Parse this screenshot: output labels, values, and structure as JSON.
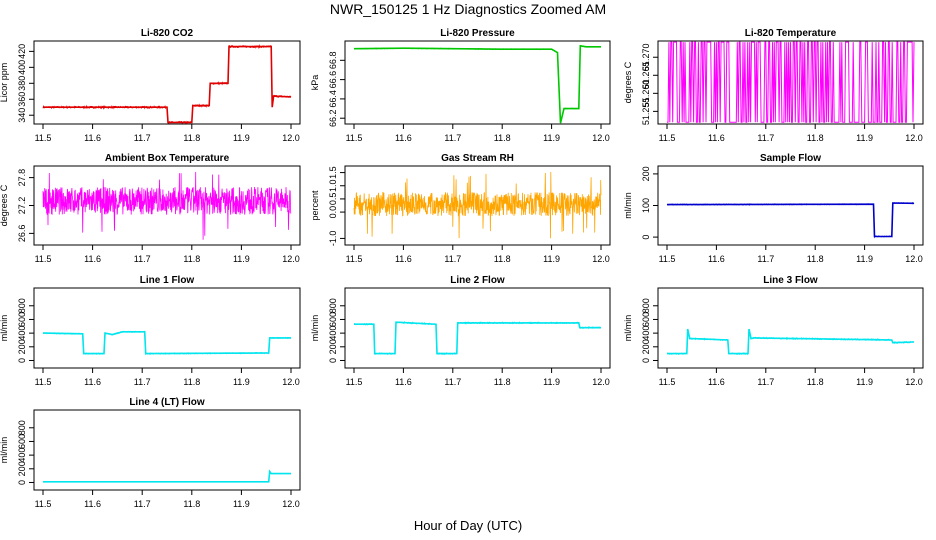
{
  "figure": {
    "title": "NWR_150125  1 Hz Diagnostics Zoomed AM",
    "xlabel": "Hour of Day (UTC)"
  },
  "chart_data": [
    {
      "id": "li820-co2",
      "type": "line",
      "title": "Li-820 CO2",
      "ylabel": "Licor ppm",
      "color": "#e00000",
      "x_ticks": [
        11.5,
        11.6,
        11.7,
        11.8,
        11.9,
        12.0
      ],
      "xlim": [
        11.5,
        12.0
      ],
      "y_ticks": [
        "340",
        "360",
        "380",
        "400",
        "420"
      ],
      "y_tick_values": [
        340,
        360,
        380,
        400,
        420
      ],
      "ylim": [
        329,
        433
      ],
      "series": [
        {
          "name": "CO2",
          "style": "step",
          "noise": 1.2,
          "x": [
            11.5,
            11.75,
            11.752,
            11.8,
            11.802,
            11.835,
            11.837,
            11.873,
            11.875,
            11.96,
            11.962,
            11.965,
            12.0
          ],
          "y": [
            350,
            350,
            331,
            331,
            352,
            352,
            380,
            380,
            426,
            426,
            350,
            364,
            363
          ]
        }
      ]
    },
    {
      "id": "li820-pressure",
      "type": "line",
      "title": "Li-820 Pressure",
      "ylabel": "kPa",
      "color": "#00c800",
      "x_ticks": [
        11.5,
        11.6,
        11.7,
        11.8,
        11.9,
        12.0
      ],
      "xlim": [
        11.5,
        12.0
      ],
      "y_ticks": [
        "66.2",
        "66.4",
        "66.6",
        "66.8"
      ],
      "y_tick_values": [
        66.2,
        66.4,
        66.6,
        66.8
      ],
      "ylim": [
        66.14,
        67.0
      ],
      "series": [
        {
          "name": "Pressure",
          "style": "step",
          "noise": 0.004,
          "x": [
            11.5,
            11.6,
            11.7,
            11.8,
            11.9,
            11.912,
            11.918,
            11.925,
            11.928,
            11.95,
            11.955,
            11.958,
            11.97,
            12.0
          ],
          "y": [
            66.92,
            66.925,
            66.92,
            66.915,
            66.915,
            66.88,
            66.15,
            66.3,
            66.3,
            66.3,
            66.3,
            66.95,
            66.94,
            66.94
          ]
        }
      ]
    },
    {
      "id": "li820-temperature",
      "type": "line",
      "title": "Li-820 Temperature",
      "ylabel": "degrees C",
      "color": "#ff00ff",
      "x_ticks": [
        11.5,
        11.6,
        11.7,
        11.8,
        11.9,
        12.0
      ],
      "xlim": [
        11.5,
        12.0
      ],
      "y_ticks": [
        "51.255",
        "51.260",
        "51.265",
        "51.270"
      ],
      "y_tick_values": [
        51.255,
        51.26,
        51.265,
        51.27
      ],
      "ylim": [
        51.2515,
        51.2745
      ],
      "series": [
        {
          "name": "Temperature",
          "style": "binary",
          "low": 51.252,
          "high": 51.2742
        }
      ]
    },
    {
      "id": "ambient-box-temperature",
      "type": "line",
      "title": "Ambient Box Temperature",
      "ylabel": "degrees C",
      "color": "#ff00ff",
      "x_ticks": [
        11.5,
        11.6,
        11.7,
        11.8,
        11.9,
        12.0
      ],
      "xlim": [
        11.5,
        12.0
      ],
      "y_ticks": [
        "26.6",
        "27.2",
        "27.8"
      ],
      "y_tick_values": [
        26.6,
        27.2,
        27.8
      ],
      "ylim": [
        26.35,
        28.05
      ],
      "series": [
        {
          "name": "Box temp",
          "style": "noise",
          "center": 27.3,
          "amp": 0.3,
          "spike_down": 26.45,
          "spike_up": 27.95
        }
      ]
    },
    {
      "id": "gas-stream-rh",
      "type": "line",
      "title": "Gas Stream RH",
      "ylabel": "percent",
      "color": "#ffa500",
      "x_ticks": [
        11.5,
        11.6,
        11.7,
        11.8,
        11.9,
        12.0
      ],
      "xlim": [
        11.5,
        12.0
      ],
      "y_ticks": [
        "-1.0",
        "0.0",
        "0.5",
        "1.0",
        "1.5"
      ],
      "y_tick_values": [
        -1.0,
        0.0,
        0.5,
        1.0,
        1.5
      ],
      "ylim": [
        -1.25,
        1.75
      ],
      "series": [
        {
          "name": "RH",
          "style": "noise",
          "center": 0.3,
          "amp": 0.45,
          "spike_down": -1.0,
          "spike_up": 1.6
        }
      ]
    },
    {
      "id": "sample-flow",
      "type": "line",
      "title": "Sample Flow",
      "ylabel": "ml/min",
      "color": "#0000cd",
      "x_ticks": [
        11.5,
        11.6,
        11.7,
        11.8,
        11.9,
        12.0
      ],
      "xlim": [
        11.5,
        12.0
      ],
      "y_ticks": [
        "0",
        "100",
        "200"
      ],
      "y_tick_values": [
        0,
        100,
        200
      ],
      "ylim": [
        -25,
        225
      ],
      "series": [
        {
          "name": "Sample flow",
          "style": "step",
          "noise": 1.5,
          "x": [
            11.5,
            11.918,
            11.92,
            11.955,
            11.957,
            12.0
          ],
          "y": [
            103,
            104,
            2,
            2,
            108,
            107
          ]
        }
      ]
    },
    {
      "id": "line-1-flow",
      "type": "line",
      "title": "Line 1 Flow",
      "ylabel": "ml/min",
      "color": "#00e5ee",
      "x_ticks": [
        11.5,
        11.6,
        11.7,
        11.8,
        11.9,
        12.0
      ],
      "xlim": [
        11.5,
        12.0
      ],
      "y_ticks": [
        "0",
        "200",
        "400",
        "600",
        "800"
      ],
      "y_tick_values": [
        0,
        200,
        400,
        600,
        800
      ],
      "ylim": [
        -110,
        1060
      ],
      "series": [
        {
          "name": "Line 1",
          "style": "step",
          "noise": 8,
          "x": [
            11.5,
            11.58,
            11.582,
            11.623,
            11.625,
            11.64,
            11.66,
            11.705,
            11.707,
            11.955,
            11.957,
            12.0
          ],
          "y": [
            400,
            390,
            100,
            100,
            400,
            380,
            420,
            420,
            100,
            110,
            330,
            330
          ]
        }
      ]
    },
    {
      "id": "line-2-flow",
      "type": "line",
      "title": "Line 2 Flow",
      "ylabel": "ml/min",
      "color": "#00e5ee",
      "x_ticks": [
        11.5,
        11.6,
        11.7,
        11.8,
        11.9,
        12.0
      ],
      "xlim": [
        11.5,
        12.0
      ],
      "y_ticks": [
        "0",
        "200",
        "400",
        "600",
        "800"
      ],
      "y_tick_values": [
        0,
        200,
        400,
        600,
        800
      ],
      "ylim": [
        -110,
        1060
      ],
      "series": [
        {
          "name": "Line 2",
          "style": "step",
          "noise": 10,
          "x": [
            11.5,
            11.54,
            11.542,
            11.583,
            11.585,
            11.666,
            11.668,
            11.708,
            11.71,
            11.955,
            11.957,
            12.0
          ],
          "y": [
            530,
            530,
            100,
            100,
            560,
            530,
            100,
            100,
            550,
            550,
            480,
            480
          ]
        }
      ]
    },
    {
      "id": "line-3-flow",
      "type": "line",
      "title": "Line 3 Flow",
      "ylabel": "ml/min",
      "color": "#00e5ee",
      "x_ticks": [
        11.5,
        11.6,
        11.7,
        11.8,
        11.9,
        12.0
      ],
      "xlim": [
        11.5,
        12.0
      ],
      "y_ticks": [
        "0",
        "200",
        "400",
        "600",
        "800"
      ],
      "y_tick_values": [
        0,
        200,
        400,
        600,
        800
      ],
      "ylim": [
        -110,
        1060
      ],
      "series": [
        {
          "name": "Line 3",
          "style": "step",
          "noise": 10,
          "x": [
            11.5,
            11.54,
            11.542,
            11.546,
            11.55,
            11.623,
            11.625,
            11.664,
            11.666,
            11.67,
            11.675,
            11.955,
            11.957,
            12.0
          ],
          "y": [
            100,
            100,
            460,
            320,
            320,
            300,
            100,
            100,
            460,
            320,
            330,
            300,
            260,
            270
          ]
        }
      ]
    },
    {
      "id": "line-4-lt-flow",
      "type": "line",
      "title": "Line 4 (LT) Flow",
      "ylabel": "ml/min",
      "color": "#00e5ee",
      "x_ticks": [
        11.5,
        11.6,
        11.7,
        11.8,
        11.9,
        12.0
      ],
      "xlim": [
        11.5,
        12.0
      ],
      "y_ticks": [
        "0",
        "200",
        "400",
        "600",
        "800"
      ],
      "y_tick_values": [
        0,
        200,
        400,
        600,
        800
      ],
      "ylim": [
        -110,
        1060
      ],
      "series": [
        {
          "name": "Line 4",
          "style": "step",
          "noise": 2,
          "x": [
            11.5,
            11.955,
            11.957,
            11.96,
            12.0
          ],
          "y": [
            10,
            10,
            160,
            130,
            130
          ]
        }
      ]
    }
  ]
}
